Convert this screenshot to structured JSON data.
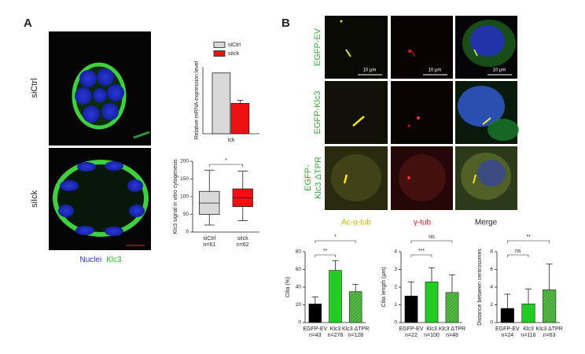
{
  "panel_a": {
    "label": "A",
    "row_labels": [
      "siCtrl",
      "siIck"
    ],
    "caption": {
      "nuclei": "Nuclei",
      "klc3": "Klc3"
    }
  },
  "panel_b": {
    "label": "B",
    "row_labels": [
      [
        "EGFP-EV"
      ],
      [
        "EGFP-Klc3"
      ],
      [
        "EGFP-",
        "Klc3 ΔTPR"
      ]
    ],
    "column_labels": [
      "Ac-α-tub",
      "γ-tub",
      "Merge"
    ],
    "scale_bars": [
      "10 μm",
      "10 μm",
      "10 μm"
    ]
  },
  "chart_data": [
    {
      "type": "bar",
      "ylabel": "Relative mRNA expression level",
      "categories": [
        "Ick"
      ],
      "ylim": [
        0,
        1.1
      ],
      "legend": "top-right",
      "series": [
        {
          "name": "siCtrl",
          "color": "#d9d9d9",
          "values": [
            1.0
          ],
          "errors": [
            null
          ]
        },
        {
          "name": "siIck",
          "color": "#ee1111",
          "values": [
            0.5
          ],
          "errors": [
            0.05
          ]
        }
      ]
    },
    {
      "type": "box",
      "ylabel": "Klc3 signal in vitro cytogenesis",
      "categories": [
        "siCtrl",
        "siIck"
      ],
      "n_labels": [
        "n=61",
        "n=62"
      ],
      "colors": [
        "#d9d9d9",
        "#ee1111"
      ],
      "ylim": [
        0,
        200
      ],
      "yticks": [
        0,
        50,
        100,
        150,
        200
      ],
      "significance": [
        "*"
      ],
      "boxes": [
        {
          "min": 20,
          "q1": 50,
          "median": 82,
          "q3": 115,
          "max": 175
        },
        {
          "min": 32,
          "q1": 72,
          "median": 97,
          "q3": 122,
          "max": 172
        }
      ]
    },
    {
      "type": "bar",
      "ylabel": "Cilia (%)",
      "categories": [
        "EGFP-EV",
        "Klc3",
        "Klc3 ΔTPR"
      ],
      "n_labels": [
        "n=43",
        "n=278",
        "n=128"
      ],
      "colors": [
        "#000000",
        "#22cc22",
        "#55bb44"
      ],
      "hatch": [
        false,
        false,
        true
      ],
      "values": [
        21,
        59,
        35
      ],
      "errors": [
        8,
        11,
        8
      ],
      "ylim": [
        0,
        80
      ],
      "yticks": [
        0,
        20,
        40,
        60,
        80
      ],
      "significance": [
        "**",
        "*"
      ]
    },
    {
      "type": "bar",
      "ylabel": "Cilia length (μm)",
      "categories": [
        "EGFP-EV",
        "Klc3",
        "Klc3 ΔTPR"
      ],
      "n_labels": [
        "n=22",
        "n=100",
        "n=48"
      ],
      "colors": [
        "#000000",
        "#22cc22",
        "#55bb44"
      ],
      "hatch": [
        false,
        false,
        true
      ],
      "values": [
        1.5,
        2.3,
        1.7
      ],
      "errors": [
        0.8,
        0.8,
        1.0
      ],
      "ylim": [
        0,
        4
      ],
      "yticks": [
        0,
        1,
        2,
        3,
        4
      ],
      "significance": [
        "***",
        "ns"
      ]
    },
    {
      "type": "bar",
      "ylabel": "Distance between centrosomes",
      "categories": [
        "EGFP-EV",
        "Klc3",
        "Klc3 ΔTPR"
      ],
      "n_labels": [
        "n=24",
        "n=116",
        "n=63"
      ],
      "colors": [
        "#000000",
        "#22cc22",
        "#55bb44"
      ],
      "hatch": [
        false,
        false,
        true
      ],
      "values": [
        1.6,
        2.1,
        3.7
      ],
      "errors": [
        1.6,
        1.7,
        2.9
      ],
      "ylim": [
        0,
        8
      ],
      "yticks": [
        0,
        2,
        4,
        6,
        8
      ],
      "significance": [
        "ns",
        "**"
      ]
    }
  ]
}
